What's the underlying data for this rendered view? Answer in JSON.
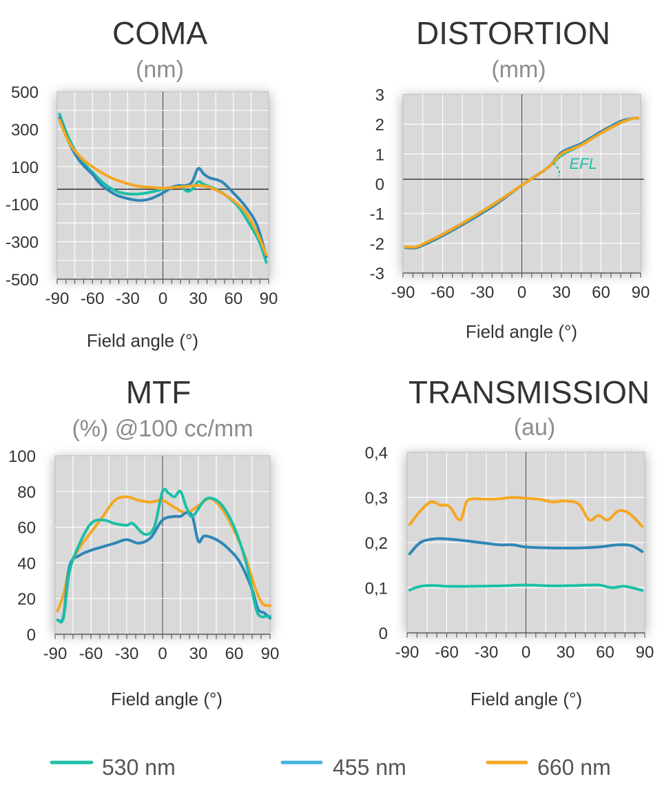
{
  "legend": [
    {
      "name": "530 nm",
      "color": "#1cbfa8"
    },
    {
      "name": "455 nm",
      "color": "#45b3e0"
    },
    {
      "name": "660 nm",
      "color": "#f5a623"
    }
  ],
  "chart_data": [
    {
      "id": "coma",
      "type": "line",
      "title": "COMA",
      "subtitle": "(nm)",
      "xlabel": "Field angle (°)",
      "ylabel": "",
      "xlim": [
        -90,
        90
      ],
      "ylim": [
        -500,
        500
      ],
      "xticks": [
        -90,
        -60,
        -30,
        0,
        30,
        60,
        90
      ],
      "xtick_labels": [
        "-90",
        "-60",
        "-30",
        "0",
        "30",
        "60",
        "90"
      ],
      "yticks": [
        500,
        300,
        100,
        -100,
        -300,
        -500
      ],
      "ytick_labels": [
        "500",
        "300",
        "100",
        "-100",
        "-300",
        "-500"
      ],
      "grid": true,
      "series": [
        {
          "name": "530 nm",
          "color": "#1cbfa8",
          "points": [
            [
              -88,
              380
            ],
            [
              -80,
              250
            ],
            [
              -70,
              140
            ],
            [
              -60,
              70
            ],
            [
              -50,
              10
            ],
            [
              -40,
              -30
            ],
            [
              -30,
              -45
            ],
            [
              -20,
              -45
            ],
            [
              -10,
              -35
            ],
            [
              0,
              -20
            ],
            [
              10,
              -5
            ],
            [
              15,
              0
            ],
            [
              20,
              -30
            ],
            [
              25,
              -20
            ],
            [
              30,
              20
            ],
            [
              35,
              5
            ],
            [
              45,
              -20
            ],
            [
              55,
              -60
            ],
            [
              65,
              -120
            ],
            [
              75,
              -220
            ],
            [
              82,
              -300
            ],
            [
              88,
              -410
            ]
          ]
        },
        {
          "name": "455 nm",
          "color": "#2e86b5",
          "points": [
            [
              -88,
              360
            ],
            [
              -80,
              230
            ],
            [
              -72,
              140
            ],
            [
              -65,
              90
            ],
            [
              -60,
              60
            ],
            [
              -55,
              20
            ],
            [
              -50,
              -10
            ],
            [
              -40,
              -50
            ],
            [
              -30,
              -70
            ],
            [
              -20,
              -80
            ],
            [
              -10,
              -70
            ],
            [
              0,
              -40
            ],
            [
              10,
              -5
            ],
            [
              20,
              0
            ],
            [
              25,
              20
            ],
            [
              30,
              90
            ],
            [
              35,
              60
            ],
            [
              40,
              40
            ],
            [
              50,
              20
            ],
            [
              60,
              -40
            ],
            [
              70,
              -110
            ],
            [
              80,
              -210
            ],
            [
              88,
              -380
            ]
          ]
        },
        {
          "name": "660 nm",
          "color": "#f5a623",
          "points": [
            [
              -88,
              350
            ],
            [
              -80,
              230
            ],
            [
              -70,
              150
            ],
            [
              -60,
              100
            ],
            [
              -50,
              60
            ],
            [
              -40,
              30
            ],
            [
              -30,
              10
            ],
            [
              -20,
              -5
            ],
            [
              -10,
              -10
            ],
            [
              0,
              -15
            ],
            [
              10,
              -10
            ],
            [
              20,
              -5
            ],
            [
              30,
              0
            ],
            [
              40,
              -10
            ],
            [
              50,
              -40
            ],
            [
              60,
              -80
            ],
            [
              70,
              -140
            ],
            [
              80,
              -250
            ],
            [
              88,
              -370
            ]
          ]
        }
      ]
    },
    {
      "id": "distortion",
      "type": "line",
      "title": "DISTORTION",
      "subtitle": "(mm)",
      "xlabel": "Field angle (°)",
      "ylabel": "",
      "xlim": [
        -90,
        90
      ],
      "ylim": [
        -3,
        3
      ],
      "xticks": [
        -90,
        -60,
        -30,
        0,
        30,
        60,
        90
      ],
      "xtick_labels": [
        "-90",
        "-60",
        "-30",
        "0",
        "30",
        "60",
        "90"
      ],
      "yticks": [
        3,
        2,
        1,
        0,
        -1,
        -2,
        -3
      ],
      "ytick_labels": [
        "3",
        "2",
        "1",
        "0",
        "-1",
        "-2",
        "-3"
      ],
      "grid": true,
      "annotation": "EFL",
      "series": [
        {
          "name": "530 nm",
          "color": "#1cbfa8",
          "points": [
            [
              -88,
              -2.15
            ],
            [
              -80,
              -2.15
            ],
            [
              -70,
              -1.95
            ],
            [
              -60,
              -1.7
            ],
            [
              -40,
              -1.2
            ],
            [
              -20,
              -0.65
            ],
            [
              0,
              -0.05
            ],
            [
              20,
              0.55
            ],
            [
              30,
              0.95
            ],
            [
              45,
              1.3
            ],
            [
              60,
              1.7
            ],
            [
              75,
              2.05
            ],
            [
              85,
              2.2
            ],
            [
              88,
              2.2
            ]
          ]
        },
        {
          "name": "455 nm",
          "color": "#2e86b5",
          "points": [
            [
              -88,
              -2.15
            ],
            [
              -80,
              -2.15
            ],
            [
              -70,
              -1.97
            ],
            [
              -60,
              -1.75
            ],
            [
              -40,
              -1.25
            ],
            [
              -20,
              -0.7
            ],
            [
              0,
              -0.05
            ],
            [
              20,
              0.55
            ],
            [
              30,
              1.05
            ],
            [
              45,
              1.35
            ],
            [
              60,
              1.75
            ],
            [
              75,
              2.1
            ],
            [
              85,
              2.2
            ],
            [
              88,
              2.2
            ]
          ]
        },
        {
          "name": "660 nm",
          "color": "#f5a623",
          "points": [
            [
              -88,
              -2.12
            ],
            [
              -80,
              -2.12
            ],
            [
              -70,
              -1.92
            ],
            [
              -60,
              -1.7
            ],
            [
              -40,
              -1.2
            ],
            [
              -20,
              -0.65
            ],
            [
              0,
              -0.05
            ],
            [
              20,
              0.55
            ],
            [
              30,
              1.0
            ],
            [
              45,
              1.3
            ],
            [
              60,
              1.7
            ],
            [
              75,
              2.05
            ],
            [
              85,
              2.2
            ],
            [
              88,
              2.2
            ]
          ]
        }
      ]
    },
    {
      "id": "mtf",
      "type": "line",
      "title": "MTF",
      "subtitle": "(%) @100 cc/mm",
      "xlabel": "Field angle (°)",
      "ylabel": "",
      "xlim": [
        -90,
        90
      ],
      "ylim": [
        0,
        100
      ],
      "xticks": [
        -90,
        -60,
        -30,
        0,
        30,
        60,
        90
      ],
      "xtick_labels": [
        "-90",
        "-60",
        "-30",
        "0",
        "30",
        "60",
        "90"
      ],
      "yticks": [
        100,
        80,
        60,
        40,
        20,
        0
      ],
      "ytick_labels": [
        "100",
        "80",
        "60",
        "40",
        "20",
        "0"
      ],
      "grid": true,
      "series": [
        {
          "name": "530 nm",
          "color": "#1cbfa8",
          "points": [
            [
              -88,
              8
            ],
            [
              -83,
              9
            ],
            [
              -78,
              35
            ],
            [
              -70,
              50
            ],
            [
              -60,
              62
            ],
            [
              -50,
              64
            ],
            [
              -40,
              62
            ],
            [
              -30,
              61
            ],
            [
              -25,
              62
            ],
            [
              -15,
              56
            ],
            [
              -7,
              60
            ],
            [
              0,
              80
            ],
            [
              5,
              79
            ],
            [
              10,
              77
            ],
            [
              15,
              80
            ],
            [
              20,
              71
            ],
            [
              25,
              66
            ],
            [
              35,
              75
            ],
            [
              42,
              76
            ],
            [
              50,
              72
            ],
            [
              60,
              60
            ],
            [
              70,
              40
            ],
            [
              78,
              15
            ],
            [
              82,
              10
            ],
            [
              86,
              10
            ],
            [
              90,
              10
            ]
          ]
        },
        {
          "name": "455 nm",
          "color": "#2e86b5",
          "points": [
            [
              -88,
              8
            ],
            [
              -83,
              10
            ],
            [
              -78,
              38
            ],
            [
              -70,
              44
            ],
            [
              -60,
              47
            ],
            [
              -50,
              49
            ],
            [
              -40,
              51
            ],
            [
              -30,
              53
            ],
            [
              -20,
              51
            ],
            [
              -10,
              54
            ],
            [
              0,
              64
            ],
            [
              10,
              66
            ],
            [
              15,
              66
            ],
            [
              20,
              68
            ],
            [
              25,
              66
            ],
            [
              30,
              52
            ],
            [
              35,
              55
            ],
            [
              45,
              53
            ],
            [
              55,
              48
            ],
            [
              65,
              40
            ],
            [
              75,
              25
            ],
            [
              80,
              14
            ],
            [
              85,
              12
            ],
            [
              90,
              9
            ]
          ]
        },
        {
          "name": "660 nm",
          "color": "#f5a623",
          "points": [
            [
              -88,
              13
            ],
            [
              -83,
              22
            ],
            [
              -78,
              37
            ],
            [
              -70,
              48
            ],
            [
              -60,
              57
            ],
            [
              -50,
              66
            ],
            [
              -40,
              75
            ],
            [
              -30,
              77
            ],
            [
              -20,
              75
            ],
            [
              -10,
              74
            ],
            [
              0,
              75
            ],
            [
              10,
              71
            ],
            [
              20,
              68
            ],
            [
              30,
              72
            ],
            [
              40,
              76
            ],
            [
              50,
              70
            ],
            [
              60,
              58
            ],
            [
              70,
              42
            ],
            [
              78,
              25
            ],
            [
              84,
              17
            ],
            [
              90,
              16
            ]
          ]
        }
      ]
    },
    {
      "id": "transmission",
      "type": "line",
      "title": "TRANSMISSION",
      "subtitle": "(au)",
      "xlabel": "Field angle (°)",
      "ylabel": "",
      "xlim": [
        -90,
        90
      ],
      "ylim": [
        0,
        0.4
      ],
      "xticks": [
        -90,
        -60,
        -30,
        0,
        30,
        60,
        90
      ],
      "xtick_labels": [
        "-90",
        "-60",
        "-30",
        "0",
        "30",
        "60",
        "90"
      ],
      "yticks": [
        0.4,
        0.3,
        0.2,
        0.1,
        0
      ],
      "ytick_labels": [
        "0,4",
        "0,3",
        "0,2",
        "0,1",
        "0"
      ],
      "grid": true,
      "series": [
        {
          "name": "530 nm",
          "color": "#1cbfa8",
          "points": [
            [
              -88,
              0.095
            ],
            [
              -80,
              0.103
            ],
            [
              -70,
              0.105
            ],
            [
              -60,
              0.103
            ],
            [
              -40,
              0.103
            ],
            [
              -20,
              0.104
            ],
            [
              0,
              0.106
            ],
            [
              20,
              0.104
            ],
            [
              40,
              0.105
            ],
            [
              55,
              0.106
            ],
            [
              65,
              0.1
            ],
            [
              75,
              0.103
            ],
            [
              88,
              0.094
            ]
          ]
        },
        {
          "name": "455 nm",
          "color": "#2e86b5",
          "points": [
            [
              -88,
              0.175
            ],
            [
              -80,
              0.2
            ],
            [
              -70,
              0.208
            ],
            [
              -60,
              0.208
            ],
            [
              -40,
              0.202
            ],
            [
              -20,
              0.195
            ],
            [
              -10,
              0.195
            ],
            [
              0,
              0.19
            ],
            [
              20,
              0.188
            ],
            [
              40,
              0.188
            ],
            [
              55,
              0.19
            ],
            [
              70,
              0.195
            ],
            [
              80,
              0.193
            ],
            [
              88,
              0.18
            ]
          ]
        },
        {
          "name": "660 nm",
          "color": "#f5a623",
          "points": [
            [
              -88,
              0.24
            ],
            [
              -80,
              0.27
            ],
            [
              -72,
              0.29
            ],
            [
              -65,
              0.283
            ],
            [
              -58,
              0.28
            ],
            [
              -50,
              0.25
            ],
            [
              -45,
              0.29
            ],
            [
              -40,
              0.297
            ],
            [
              -30,
              0.296
            ],
            [
              -20,
              0.297
            ],
            [
              -10,
              0.3
            ],
            [
              0,
              0.298
            ],
            [
              10,
              0.296
            ],
            [
              20,
              0.29
            ],
            [
              30,
              0.292
            ],
            [
              40,
              0.285
            ],
            [
              48,
              0.25
            ],
            [
              55,
              0.26
            ],
            [
              62,
              0.25
            ],
            [
              70,
              0.27
            ],
            [
              78,
              0.265
            ],
            [
              88,
              0.236
            ]
          ]
        }
      ]
    }
  ]
}
